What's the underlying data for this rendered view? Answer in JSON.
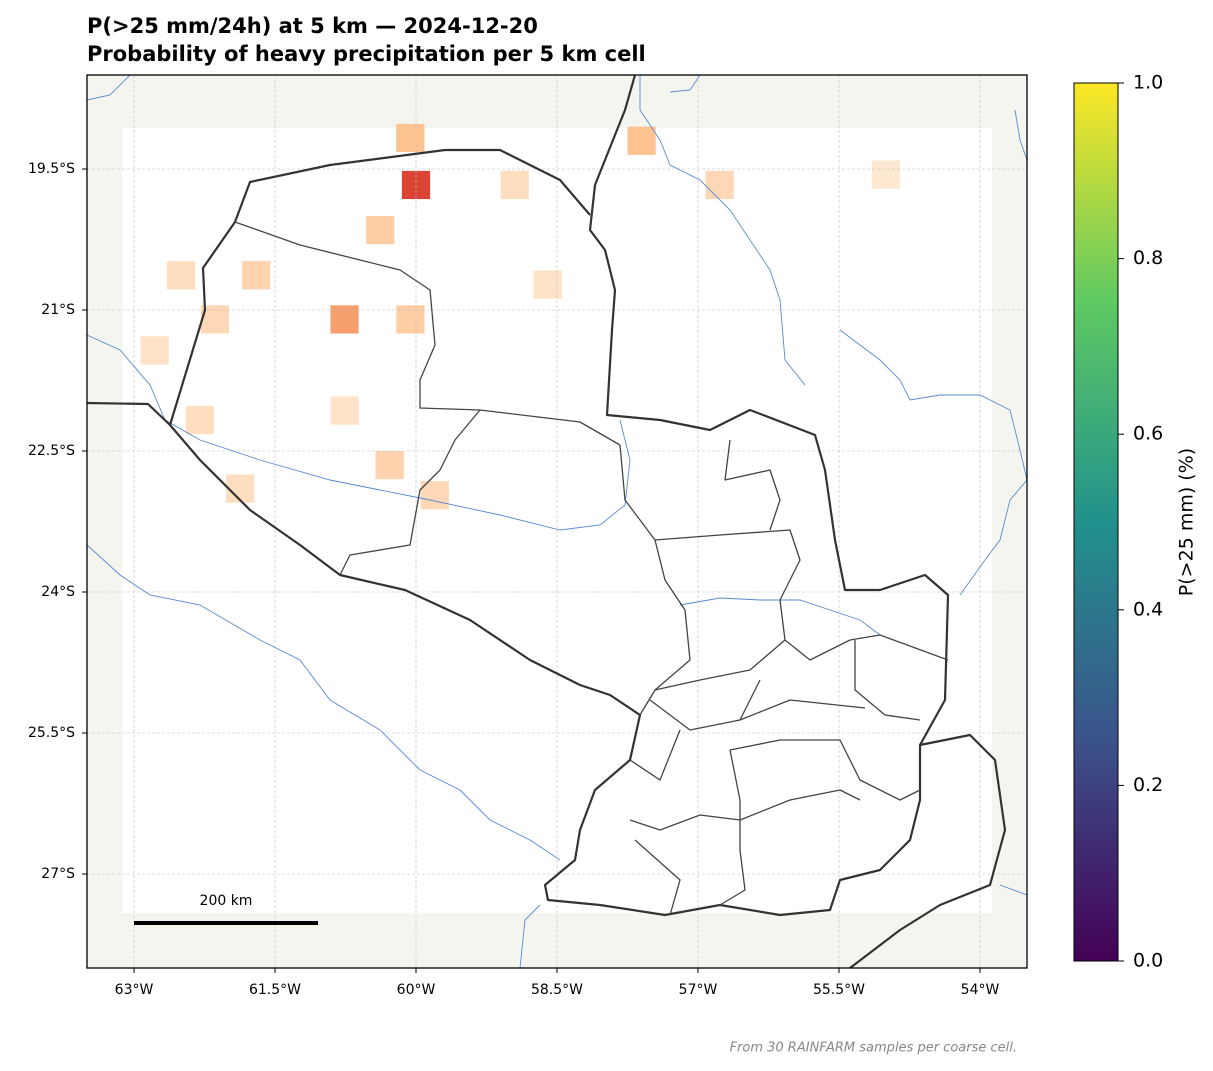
{
  "chart_data": {
    "type": "map",
    "title": "P(>25 mm/24h) at 5 km — 2024-12-20",
    "subtitle": "Probability of heavy precipitation per 5 km cell",
    "xlim": [
      -63.5,
      -53.5
    ],
    "ylim": [
      -28,
      -18.5
    ],
    "xticks": [
      {
        "value": -63,
        "label": "63°W"
      },
      {
        "value": -61.5,
        "label": "61.5°W"
      },
      {
        "value": -60,
        "label": "60°W"
      },
      {
        "value": -58.5,
        "label": "58.5°W"
      },
      {
        "value": -57,
        "label": "57°W"
      },
      {
        "value": -55.5,
        "label": "55.5°W"
      },
      {
        "value": -54,
        "label": "54°W"
      }
    ],
    "yticks": [
      {
        "value": -19.5,
        "label": "19.5°S"
      },
      {
        "value": -21,
        "label": "21°S"
      },
      {
        "value": -22.5,
        "label": "22.5°S"
      },
      {
        "value": -24,
        "label": "24°S"
      },
      {
        "value": -25.5,
        "label": "25.5°S"
      },
      {
        "value": -27,
        "label": "27°S"
      }
    ],
    "grid": true,
    "x": [
      -60.0,
      -60.76,
      -60.06,
      -57.6,
      -60.38,
      -61.7,
      -62.5,
      -60.28,
      -59.8,
      -56.77,
      -60.06,
      -62.14,
      -62.3,
      -61.87,
      -58.95,
      -58.6,
      -55.0,
      -62.78,
      -60.76
    ],
    "y": [
      -19.67,
      -21.1,
      -19.17,
      -19.2,
      -20.15,
      -20.63,
      -20.63,
      -22.65,
      -22.97,
      -19.67,
      -21.1,
      -21.1,
      -22.17,
      -22.9,
      -19.67,
      -20.73,
      -19.56,
      -21.43,
      -22.07
    ],
    "values": [
      0.25,
      0.15,
      0.1,
      0.1,
      0.08,
      0.07,
      0.05,
      0.07,
      0.06,
      0.06,
      0.08,
      0.06,
      0.05,
      0.05,
      0.05,
      0.04,
      0.03,
      0.04,
      0.04
    ],
    "map_colors": [
      "#fff7ec",
      "#fdae6b",
      "#d7301f"
    ],
    "colorbar_label": "P(>25 mm) (%)",
    "colorbar_lim": [
      0,
      1
    ],
    "colorbar_ticks": [
      {
        "value": 0,
        "label": "0.0"
      },
      {
        "value": 0.2,
        "label": "0.2"
      },
      {
        "value": 0.4,
        "label": "0.4"
      },
      {
        "value": 0.6,
        "label": "0.6"
      },
      {
        "value": 0.8,
        "label": "0.8"
      },
      {
        "value": 1,
        "label": "1.0"
      }
    ],
    "colorbar_colors": [
      "#440154",
      "#3b528b",
      "#21918c",
      "#5ec962",
      "#fde725"
    ],
    "scale_bar_label": "200 km",
    "footnote": "From 30 RAINFARM samples per coarse cell."
  }
}
